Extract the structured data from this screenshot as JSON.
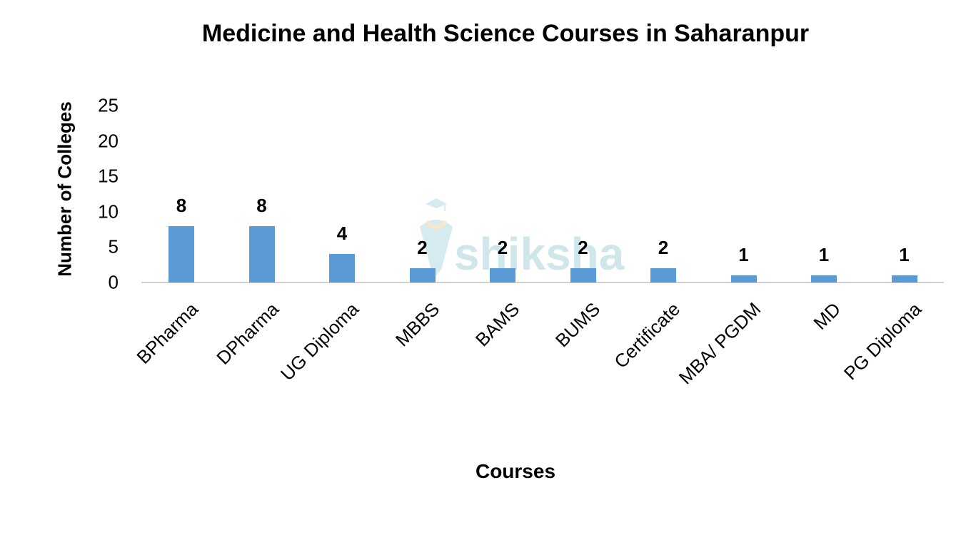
{
  "chart_data": {
    "type": "bar",
    "title": "Medicine and Health Science Courses in Saharanpur",
    "xlabel": "Courses",
    "ylabel": "Number of Colleges",
    "categories": [
      "BPharma",
      "DPharma",
      "UG Diploma",
      "MBBS",
      "BAMS",
      "BUMS",
      "Certificate",
      "MBA/ PGDM",
      "MD",
      "PG Diploma"
    ],
    "values": [
      8,
      8,
      4,
      2,
      2,
      2,
      2,
      1,
      1,
      1
    ],
    "ylim": [
      0,
      25
    ],
    "yticks": [
      0,
      5,
      10,
      15,
      20,
      25
    ],
    "grid": false,
    "legend": null,
    "data_labels": true,
    "bar_color": "#5b9bd5"
  },
  "title": "Medicine and Health Science Courses in Saharanpur",
  "axes": {
    "xlabel": "Courses",
    "ylabel": "Number of Colleges",
    "yticks": [
      "0",
      "5",
      "10",
      "15",
      "20",
      "25"
    ]
  },
  "watermark": {
    "text": "shiksha"
  }
}
